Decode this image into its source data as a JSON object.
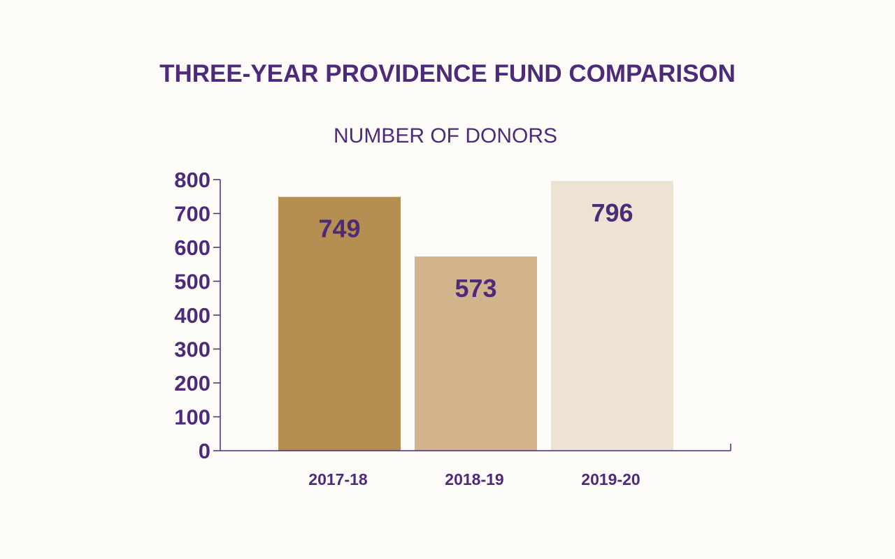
{
  "colors": {
    "text": "#4e2a7a",
    "axis": "#4e2a7a",
    "background": "#fdfcf9",
    "bar_colors": [
      "#b58f51",
      "#d1b48b",
      "#ede3d2"
    ]
  },
  "chart_data": {
    "type": "bar",
    "title": "THREE-YEAR PROVIDENCE FUND COMPARISON",
    "subtitle": "NUMBER OF DONORS",
    "categories": [
      "2017-18",
      "2018-19",
      "2019-20"
    ],
    "values": [
      749,
      573,
      796
    ],
    "data_labels": [
      "749",
      "573",
      "796"
    ],
    "y_ticks": [
      "0",
      "100",
      "200",
      "300",
      "400",
      "500",
      "600",
      "700",
      "800"
    ],
    "ylim": [
      0,
      800
    ],
    "grid": false,
    "legend": "none",
    "xlabel": "",
    "ylabel": ""
  }
}
